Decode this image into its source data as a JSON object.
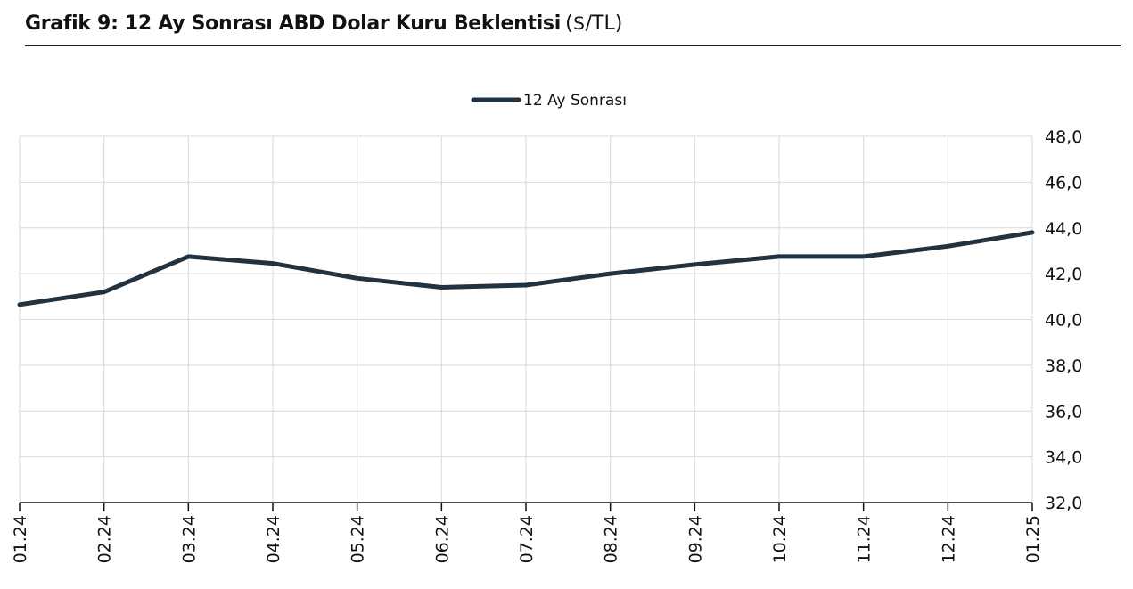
{
  "header": {
    "title_main": "Grafik 9: 12 Ay Sonrası ABD Dolar Kuru Beklentisi",
    "title_unit": "($/TL)"
  },
  "chart_data": {
    "type": "line",
    "categories": [
      "01.24",
      "02.24",
      "03.24",
      "04.24",
      "05.24",
      "06.24",
      "07.24",
      "08.24",
      "09.24",
      "10.24",
      "11.24",
      "12.24",
      "01.25"
    ],
    "series": [
      {
        "name": "12 Ay Sonrası",
        "values": [
          40.65,
          41.2,
          42.75,
          42.45,
          41.8,
          41.4,
          41.5,
          42.0,
          42.4,
          42.75,
          42.75,
          43.2,
          43.8
        ],
        "color": "#233240"
      }
    ],
    "ylim": [
      32,
      48
    ],
    "yticks": [
      "32,0",
      "34,0",
      "36,0",
      "38,0",
      "40,0",
      "42,0",
      "44,0",
      "46,0",
      "48,0"
    ],
    "y_axis_position": "right",
    "x_tick_rotation": "vertical",
    "grid": true,
    "grid_color": "#d9d9d9",
    "legend_position": "top-center"
  }
}
